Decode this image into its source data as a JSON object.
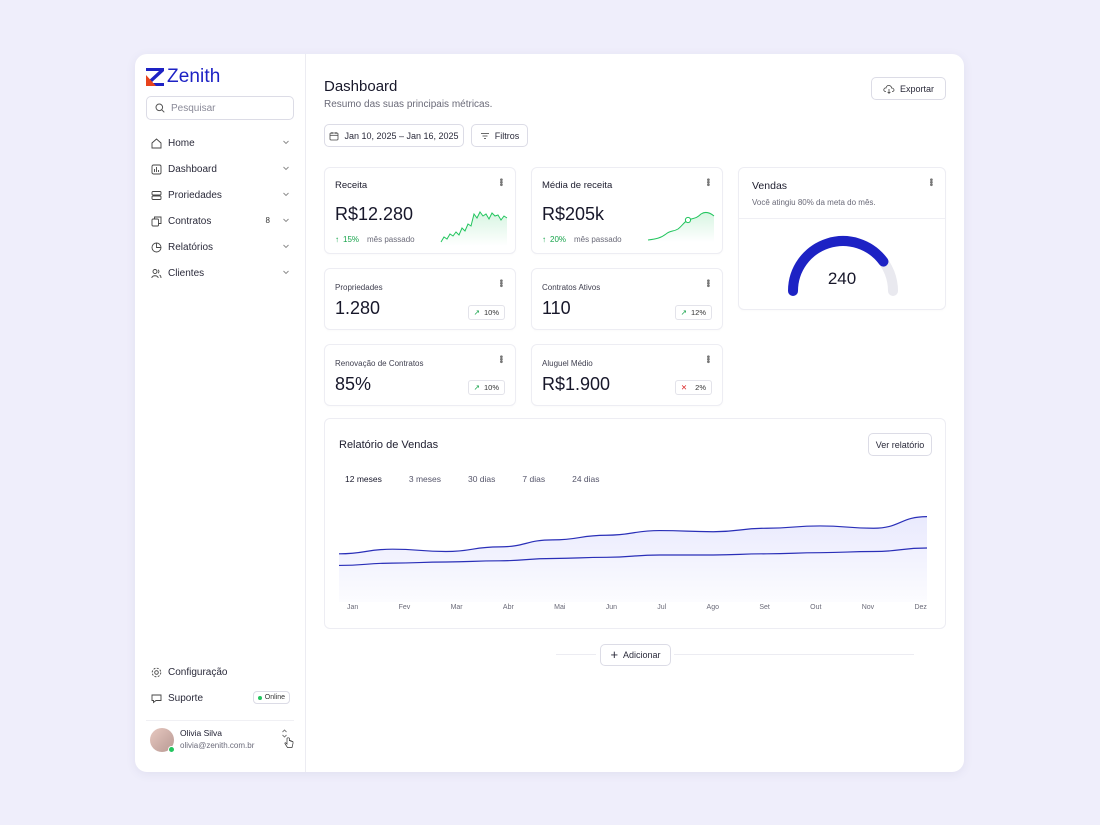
{
  "brand": {
    "name": "Zenith",
    "accent": "#1d22c4",
    "logo_red": "#e8431c"
  },
  "sidebar": {
    "search_placeholder": "Pesquisar",
    "items": [
      {
        "label": "Home",
        "icon": "home-icon"
      },
      {
        "label": "Dashboard",
        "icon": "chart-bar-icon"
      },
      {
        "label": "Proriedades",
        "icon": "building-icon"
      },
      {
        "label": "Contratos",
        "icon": "documents-icon",
        "badge": "8"
      },
      {
        "label": "Relatórios",
        "icon": "pie-chart-icon"
      },
      {
        "label": "Clientes",
        "icon": "users-icon"
      }
    ],
    "bottom": [
      {
        "label": "Configuração",
        "icon": "gear-icon"
      },
      {
        "label": "Suporte",
        "icon": "chat-icon",
        "status": "Online"
      }
    ],
    "user": {
      "name": "Olivia Silva",
      "email": "olivia@zenith.com.br"
    }
  },
  "header": {
    "title": "Dashboard",
    "subtitle": "Resumo das suas principais métricas.",
    "export_label": "Exportar",
    "date_range": "Jan 10, 2025 – Jan 16, 2025",
    "filters_label": "Filtros"
  },
  "cards": {
    "receita": {
      "title": "Receita",
      "value": "R$12.280",
      "change": "15%",
      "period": "mês passado"
    },
    "media": {
      "title": "Média de receita",
      "value": "R$205k",
      "change": "20%",
      "period": "mês passado"
    },
    "vendas": {
      "title": "Vendas",
      "subtitle": "Você atingiu 80% da meta do mês.",
      "value": "240",
      "progress": 0.8
    },
    "propriedades": {
      "title": "Propriedades",
      "value": "1.280",
      "change": "10%",
      "direction": "up"
    },
    "contratos": {
      "title": "Contratos Ativos",
      "value": "110",
      "change": "12%",
      "direction": "up"
    },
    "renovacao": {
      "title": "Renovação de Contratos",
      "value": "85%",
      "change": "10%",
      "direction": "up"
    },
    "aluguel": {
      "title": "Aluguel Médio",
      "value": "R$1.900",
      "change": "2%",
      "direction": "down"
    }
  },
  "report": {
    "title": "Relatório de Vendas",
    "button": "Ver relatório",
    "tabs": [
      "12 meses",
      "3 meses",
      "30 dias",
      "7 dias",
      "24 dias"
    ],
    "active_tab": "12 meses"
  },
  "add_label": "Adicionar",
  "chart_data": {
    "type": "area",
    "categories": [
      "Jan",
      "Fev",
      "Mar",
      "Abr",
      "Mai",
      "Jun",
      "Jul",
      "Ago",
      "Set",
      "Out",
      "Nov",
      "Dez"
    ],
    "series": [
      {
        "values": [
          38,
          42,
          40,
          44,
          50,
          54,
          58,
          57,
          60,
          62,
          60,
          70
        ]
      },
      {
        "values": [
          28,
          30,
          31,
          32,
          34,
          35,
          37,
          37,
          38,
          39,
          40,
          43
        ]
      }
    ],
    "ylim": [
      0,
      80
    ],
    "grid": false,
    "colors": [
      "#2a2fb8",
      "#2a2fb8"
    ]
  }
}
